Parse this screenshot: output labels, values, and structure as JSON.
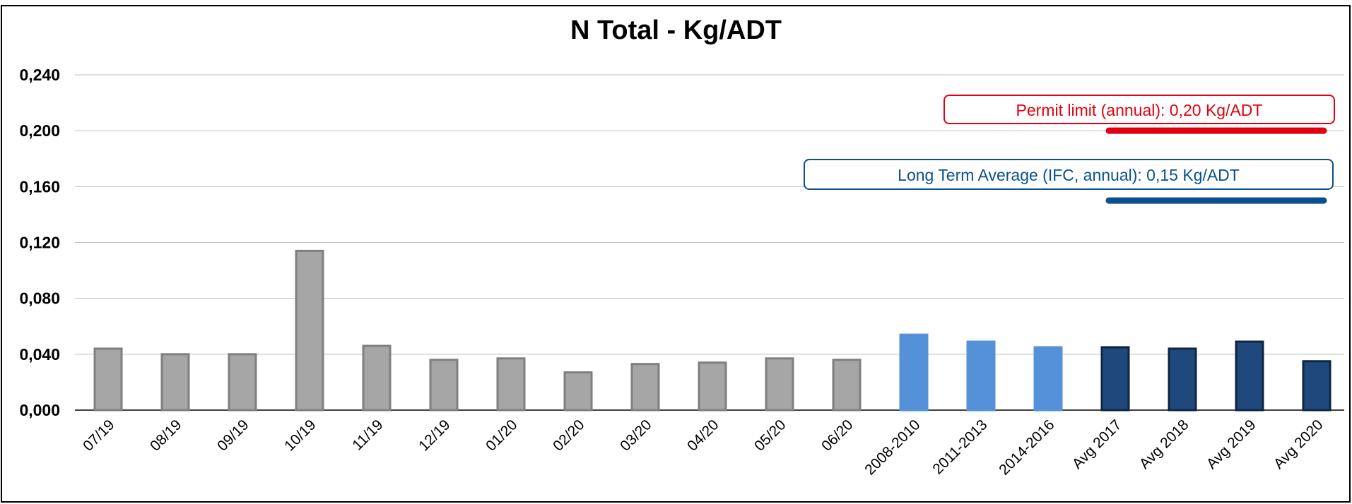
{
  "chart_data": {
    "type": "bar",
    "title": "N Total - Kg/ADT",
    "xlabel": "",
    "ylabel": "",
    "ylim": [
      0,
      0.24
    ],
    "yticks": [
      "0,000",
      "0,040",
      "0,080",
      "0,120",
      "0,160",
      "0,200",
      "0,240"
    ],
    "grid": true,
    "categories": [
      "07/19",
      "08/19",
      "09/19",
      "10/19",
      "11/19",
      "12/19",
      "01/20",
      "02/20",
      "03/20",
      "04/20",
      "05/20",
      "06/20",
      "2008-2010",
      "2011-2013",
      "2014-2016",
      "Avg 2017",
      "Avg 2018",
      "Avg 2019",
      "Avg 2020"
    ],
    "values": [
      0.044,
      0.04,
      0.04,
      0.114,
      0.046,
      0.036,
      0.037,
      0.027,
      0.033,
      0.034,
      0.037,
      0.036,
      0.054,
      0.049,
      0.045,
      0.045,
      0.044,
      0.049,
      0.035
    ],
    "bar_groups": [
      "monthly",
      "monthly",
      "monthly",
      "monthly",
      "monthly",
      "monthly",
      "monthly",
      "monthly",
      "monthly",
      "monthly",
      "monthly",
      "monthly",
      "historic",
      "historic",
      "historic",
      "annual",
      "annual",
      "annual",
      "annual"
    ],
    "group_colors": {
      "monthly": {
        "fill": "#a6a6a6",
        "stroke": "#7f7f7f"
      },
      "historic": {
        "fill": "#5591d8",
        "stroke": "#5591d8"
      },
      "annual": {
        "fill": "#1f497d",
        "stroke": "#0f2640"
      }
    },
    "reference_lines": [
      {
        "label": "Permit limit (annual):  0,20 Kg/ADT",
        "value": 0.2,
        "color": "#e0000f",
        "from_category": "Avg 2017",
        "to_category": "Avg 2020"
      },
      {
        "label": "Long Term Average (IFC, annual):  0,15 Kg/ADT",
        "value": 0.15,
        "color": "#0b4f8f",
        "from_category": "Avg 2017",
        "to_category": "Avg 2020"
      }
    ],
    "gridline_color": "#bfbfbf"
  }
}
